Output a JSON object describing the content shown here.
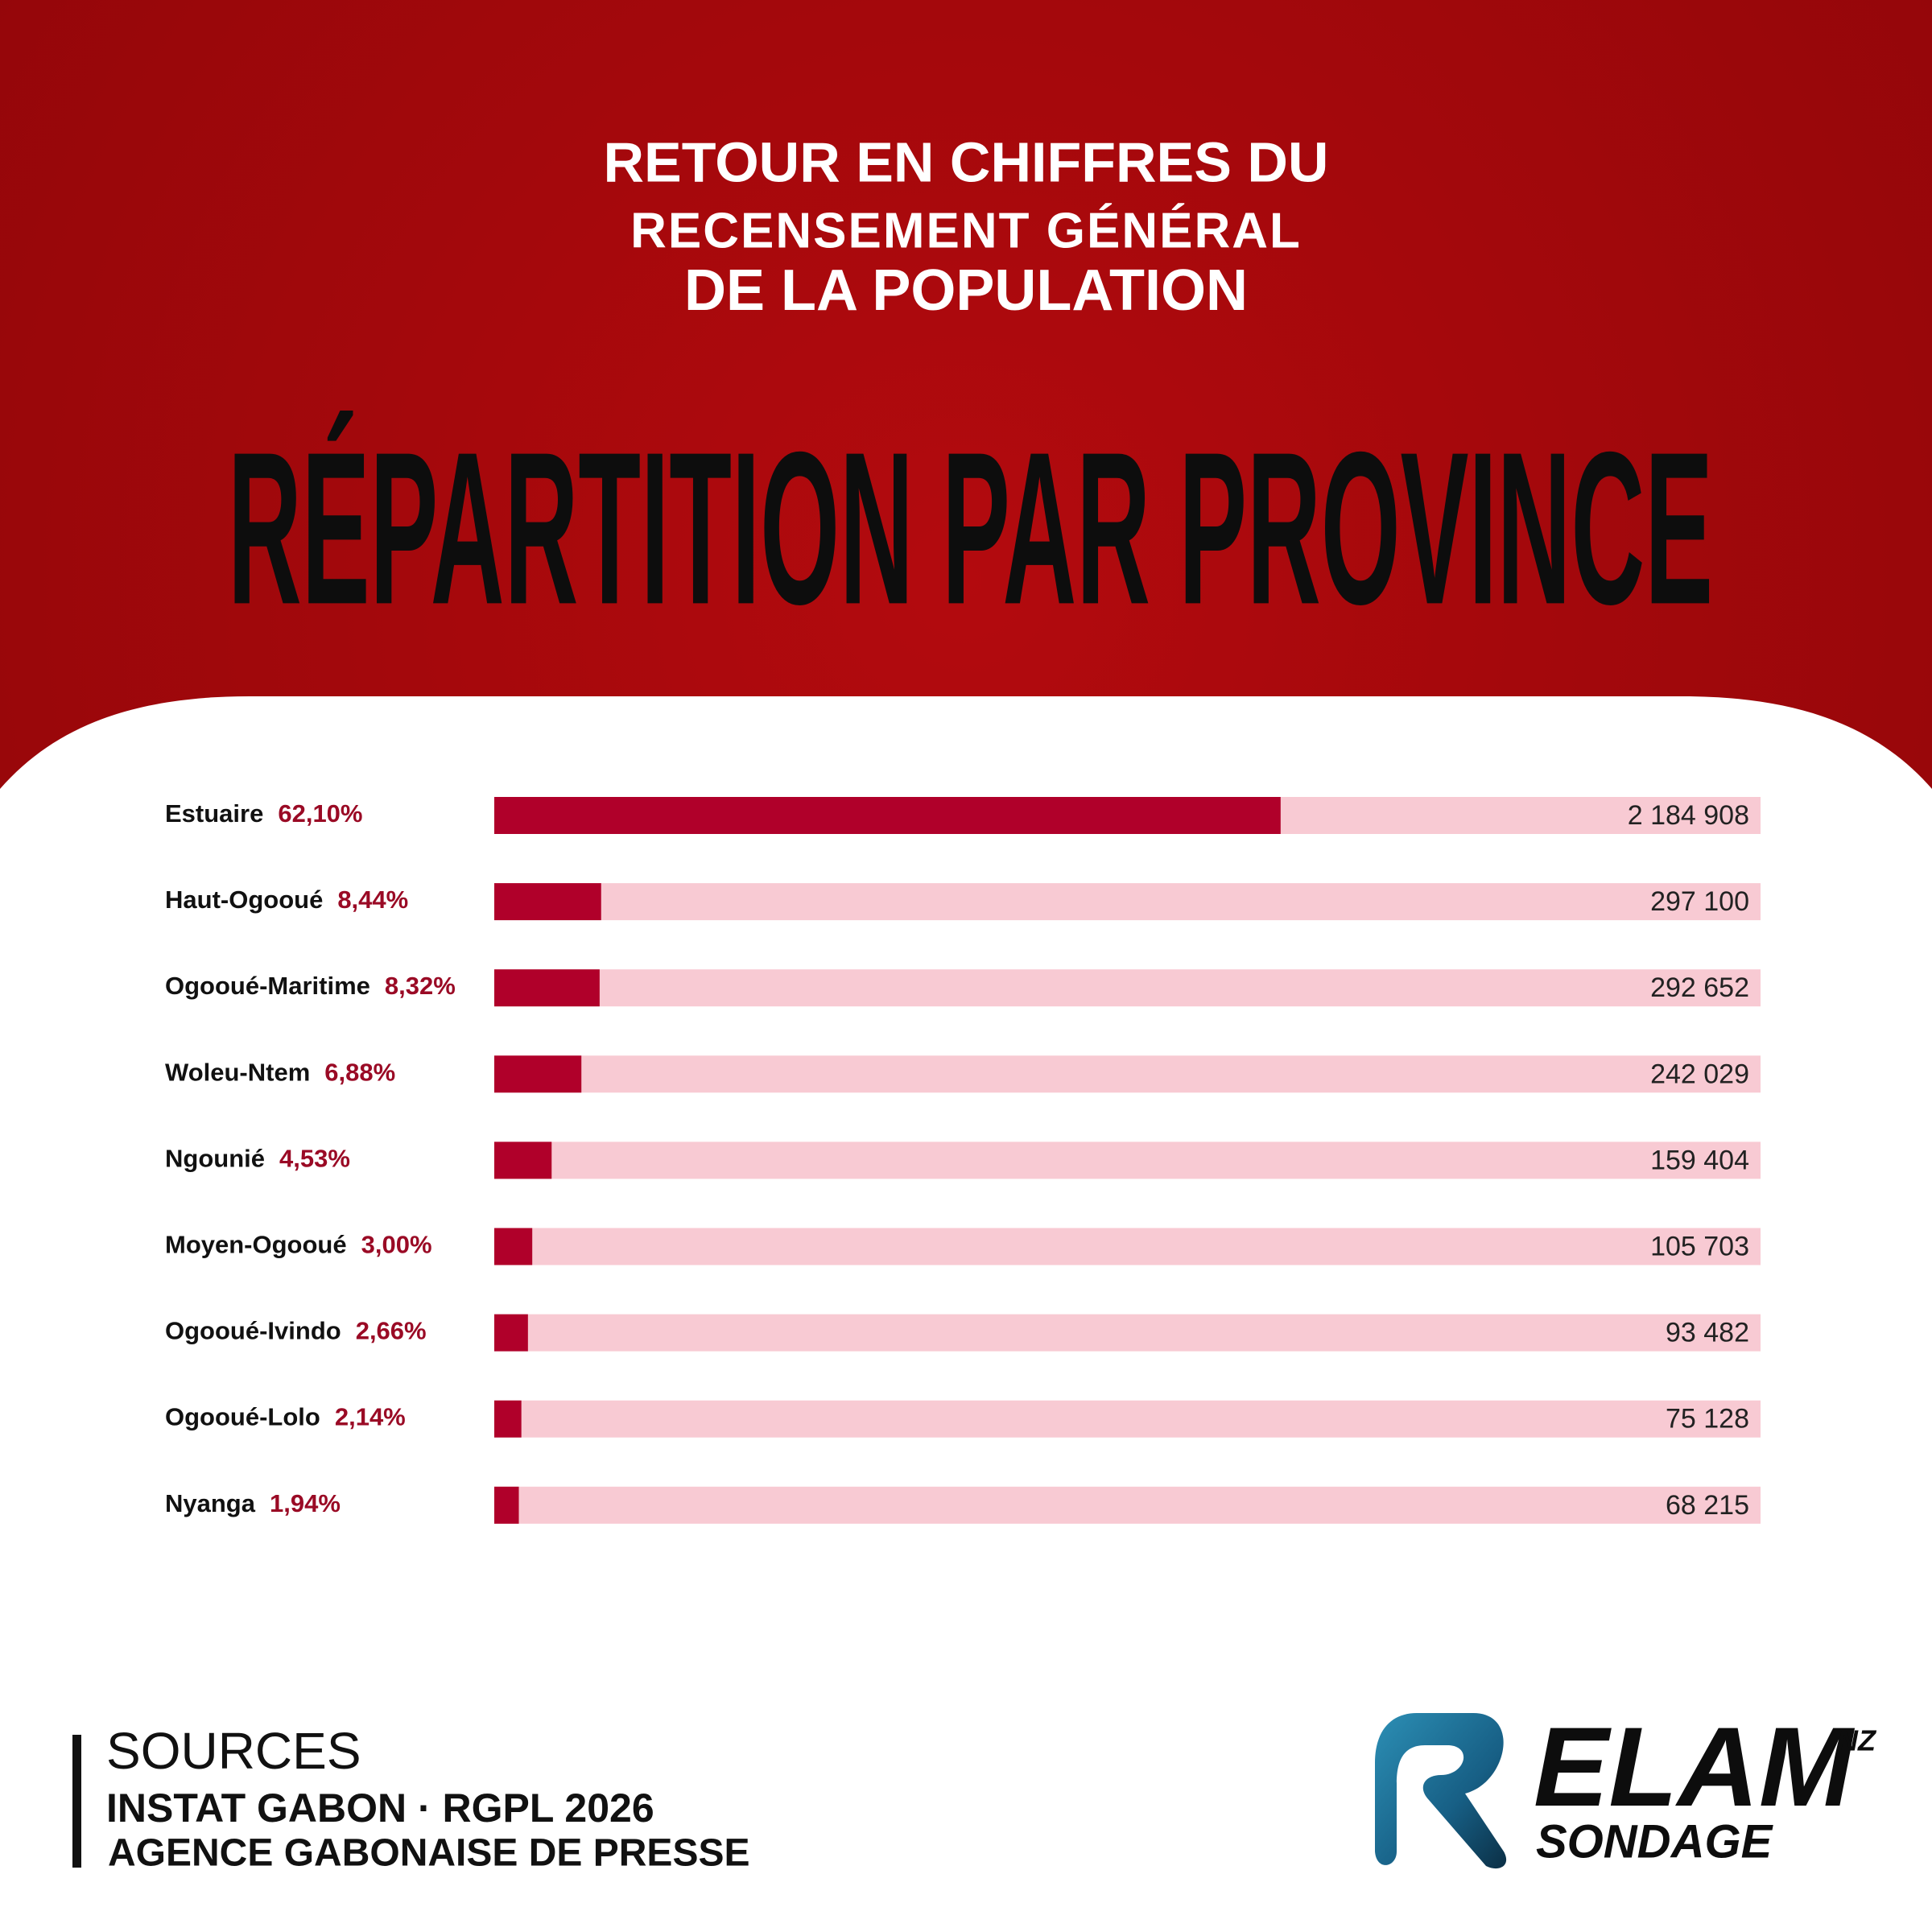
{
  "header": [
    "RETOUR EN CHIFFRES DU",
    "RECENSEMENT GÉNÉRAL",
    "DE LA POPULATION"
  ],
  "chart_data": {
    "type": "bar",
    "orientation": "horizontal",
    "title": "RÉPARTITION PAR PROVINCE",
    "categories": [
      "Estuaire",
      "Haut-Ogooué",
      "Ogooué-Maritime",
      "Woleu-Ntem",
      "Ngounié",
      "Moyen-Ogooué",
      "Ogooué-Ivindo",
      "Ogooué-Lolo",
      "Nyanga"
    ],
    "values": [
      62.1,
      8.44,
      8.32,
      6.88,
      4.53,
      3.0,
      2.66,
      2.14,
      1.94
    ],
    "value_labels": [
      "62,10%",
      "8,44%",
      "8,32%",
      "6,88%",
      "4,53%",
      "3,00%",
      "2,66%",
      "2,14%",
      "1,94%"
    ],
    "totals": [
      "2 184 908",
      "297 100",
      "292 652",
      "242 029",
      "159 404",
      "105 703",
      "93 482",
      "75 128",
      "68 215"
    ],
    "xlim": [
      0,
      100
    ],
    "color": "#b0002a",
    "track_color": "#f8cad3"
  },
  "sources": {
    "heading": "SOURCES",
    "lines": [
      "INSTAT GABON · RGPL 2026",
      "AGENCE GABONAISE DE PRESSE"
    ]
  },
  "logo": {
    "name": "ELAM",
    "suffix": "NZ",
    "subtitle": "SONDAGE"
  }
}
